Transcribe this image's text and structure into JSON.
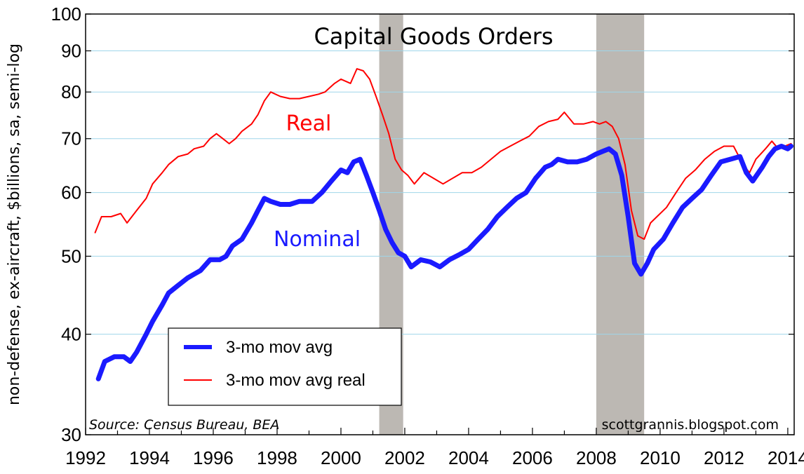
{
  "chart_data": {
    "type": "line",
    "title": "Capital Goods Orders",
    "ylabel": "non-defense, ex-aircraft, $billions, sa, semi-log",
    "y_scale": "log",
    "ylim": [
      30,
      100
    ],
    "xlim": [
      1992,
      2014.2
    ],
    "y_ticks": [
      30,
      40,
      50,
      60,
      70,
      80,
      90,
      100
    ],
    "x_ticks": [
      1992,
      1994,
      1996,
      1998,
      2000,
      2002,
      2004,
      2006,
      2008,
      2010,
      2012,
      2014
    ],
    "grid": true,
    "recessions": [
      [
        2001.2,
        2001.95
      ],
      [
        2008.0,
        2009.5
      ]
    ],
    "series": [
      {
        "name": "3-mo mov avg",
        "label": "Nominal",
        "color": "#1a1aff",
        "x": [
          1992.4,
          1992.6,
          1992.9,
          1993.2,
          1993.4,
          1993.6,
          1993.9,
          1994.1,
          1994.4,
          1994.6,
          1994.9,
          1995.2,
          1995.4,
          1995.6,
          1995.9,
          1996.2,
          1996.4,
          1996.6,
          1996.9,
          1997.2,
          1997.4,
          1997.6,
          1997.8,
          1998.1,
          1998.4,
          1998.7,
          1999.1,
          1999.4,
          1999.7,
          2000.0,
          2000.2,
          2000.4,
          2000.6,
          2000.8,
          2001.0,
          2001.2,
          2001.4,
          2001.6,
          2001.8,
          2002.0,
          2002.2,
          2002.5,
          2002.8,
          2003.1,
          2003.4,
          2003.7,
          2004.0,
          2004.3,
          2004.6,
          2004.9,
          2005.2,
          2005.5,
          2005.8,
          2006.1,
          2006.4,
          2006.6,
          2006.8,
          2007.1,
          2007.4,
          2007.7,
          2008.0,
          2008.2,
          2008.4,
          2008.6,
          2008.8,
          2009.0,
          2009.2,
          2009.4,
          2009.6,
          2009.8,
          2010.1,
          2010.4,
          2010.7,
          2011.0,
          2011.3,
          2011.6,
          2011.9,
          2012.2,
          2012.5,
          2012.7,
          2012.9,
          2013.2,
          2013.4,
          2013.6,
          2013.8,
          2014.0,
          2014.1
        ],
        "values": [
          35.2,
          37.0,
          37.5,
          37.5,
          37.0,
          38.0,
          40.0,
          41.5,
          43.5,
          45.0,
          46.0,
          47.0,
          47.5,
          48.0,
          49.5,
          49.5,
          50.0,
          51.5,
          52.5,
          55.0,
          57.0,
          59.0,
          58.5,
          58.0,
          58.0,
          58.5,
          58.5,
          60.0,
          62.0,
          64.0,
          63.5,
          65.5,
          66.0,
          63.0,
          60.0,
          57.0,
          54.0,
          52.0,
          50.5,
          50.0,
          48.5,
          49.5,
          49.2,
          48.5,
          49.5,
          50.2,
          51.0,
          52.5,
          54.0,
          56.0,
          57.5,
          59.0,
          60.0,
          62.5,
          64.5,
          65.0,
          66.0,
          65.5,
          65.5,
          66.0,
          67.0,
          67.5,
          68.0,
          67.0,
          63.0,
          56.0,
          49.0,
          47.5,
          49.0,
          51.0,
          52.5,
          55.0,
          57.5,
          59.0,
          60.5,
          63.0,
          65.5,
          66.0,
          66.5,
          63.5,
          62.0,
          64.5,
          66.5,
          68.0,
          68.5,
          68.0,
          68.5
        ]
      },
      {
        "name": "3-mo mov avg real",
        "label": "Real",
        "color": "#ff0000",
        "x": [
          1992.3,
          1992.5,
          1992.8,
          1993.1,
          1993.3,
          1993.6,
          1993.9,
          1994.1,
          1994.4,
          1994.6,
          1994.9,
          1995.2,
          1995.4,
          1995.7,
          1995.9,
          1996.1,
          1996.3,
          1996.5,
          1996.7,
          1996.9,
          1997.2,
          1997.4,
          1997.6,
          1997.8,
          1998.1,
          1998.4,
          1998.7,
          1999.0,
          1999.3,
          1999.5,
          1999.8,
          2000.0,
          2000.3,
          2000.5,
          2000.7,
          2000.9,
          2001.1,
          2001.3,
          2001.5,
          2001.7,
          2001.9,
          2002.1,
          2002.3,
          2002.6,
          2002.9,
          2003.2,
          2003.5,
          2003.8,
          2004.1,
          2004.4,
          2004.7,
          2005.0,
          2005.3,
          2005.6,
          2005.9,
          2006.2,
          2006.5,
          2006.8,
          2007.0,
          2007.3,
          2007.6,
          2007.9,
          2008.1,
          2008.3,
          2008.5,
          2008.7,
          2008.9,
          2009.1,
          2009.3,
          2009.5,
          2009.7,
          2009.9,
          2010.2,
          2010.5,
          2010.8,
          2011.1,
          2011.4,
          2011.7,
          2012.0,
          2012.3,
          2012.6,
          2012.8,
          2013.0,
          2013.3,
          2013.5,
          2013.7,
          2013.9,
          2014.1
        ],
        "values": [
          53.5,
          56.0,
          56.0,
          56.5,
          55.0,
          57.0,
          59.0,
          61.5,
          63.5,
          65.0,
          66.5,
          67.0,
          68.0,
          68.5,
          70.0,
          71.0,
          70.0,
          69.0,
          70.0,
          71.5,
          73.0,
          75.0,
          78.0,
          80.0,
          79.0,
          78.5,
          78.5,
          79.0,
          79.5,
          80.0,
          82.0,
          83.0,
          82.0,
          85.5,
          85.0,
          83.0,
          79.0,
          75.0,
          71.0,
          66.0,
          64.0,
          63.0,
          61.5,
          63.5,
          62.5,
          61.5,
          62.5,
          63.5,
          63.5,
          64.5,
          66.0,
          67.5,
          68.5,
          69.5,
          70.5,
          72.5,
          73.5,
          74.0,
          75.5,
          73.0,
          73.0,
          73.5,
          73.0,
          73.5,
          72.5,
          70.0,
          65.0,
          57.0,
          53.0,
          52.5,
          55.0,
          56.0,
          57.5,
          60.0,
          62.5,
          64.0,
          66.0,
          67.5,
          68.5,
          68.5,
          65.0,
          63.5,
          66.0,
          68.0,
          69.5,
          68.0,
          68.5,
          69.0
        ]
      }
    ],
    "legend": {
      "position": "lower-left",
      "entries": [
        "3-mo mov avg",
        "3-mo mov avg real"
      ]
    },
    "annotations": {
      "real": "Real",
      "nominal": "Nominal",
      "source": "Source: Census Bureau, BEA",
      "credit": "scottgrannis.blogspot.com"
    }
  }
}
